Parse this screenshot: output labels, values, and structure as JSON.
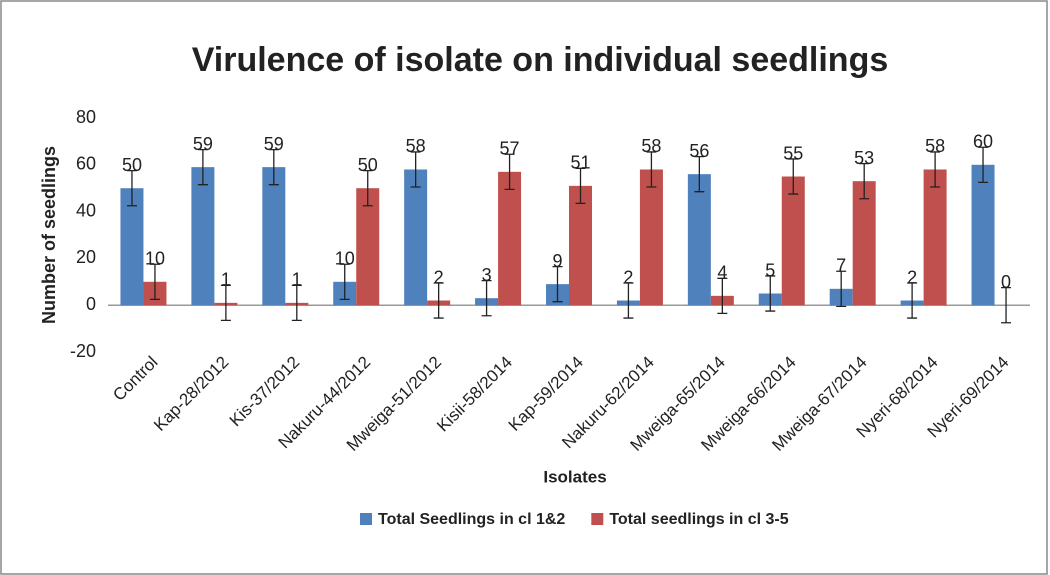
{
  "chart_data": {
    "type": "bar",
    "title": "Virulence of isolate on individual seedlings",
    "x_label": "Isolates",
    "y_label": "Number of seedlings",
    "categories": [
      "Control",
      "Kap-28/2012",
      "Kis-37/2012",
      "Nakuru-44/2012",
      "Mweiga-51/2012",
      "Kisii-58/2014",
      "Kap-59/2014",
      "Nakuru-62/2014",
      "Mweiga-65/2014",
      "Mweiga-66/2014",
      "Mweiga-67/2014",
      "Nyeri-68/2014",
      "Nyeri-69/2014"
    ],
    "series": [
      {
        "name": "Total Seedlings in cl 1&2",
        "color": "#4f81bd",
        "values": [
          50,
          59,
          59,
          10,
          58,
          3,
          9,
          2,
          56,
          5,
          7,
          2,
          60
        ],
        "errors": [
          7.5,
          7.5,
          7.5,
          7.5,
          7.5,
          7.5,
          7.5,
          7.5,
          7.5,
          7.5,
          7.5,
          7.5,
          7.5
        ]
      },
      {
        "name": "Total seedlings in cl 3-5",
        "color": "#c0504d",
        "values": [
          10,
          1,
          1,
          50,
          2,
          57,
          51,
          58,
          4,
          55,
          53,
          58,
          0
        ],
        "errors": [
          7.5,
          7.5,
          7.5,
          7.5,
          7.5,
          7.5,
          7.5,
          7.5,
          7.5,
          7.5,
          7.5,
          7.5,
          7.5
        ]
      }
    ],
    "ylim": [
      -20,
      80
    ],
    "yticks": [
      -20,
      0,
      20,
      40,
      60,
      80
    ],
    "grid": false,
    "legend": "bottom"
  }
}
